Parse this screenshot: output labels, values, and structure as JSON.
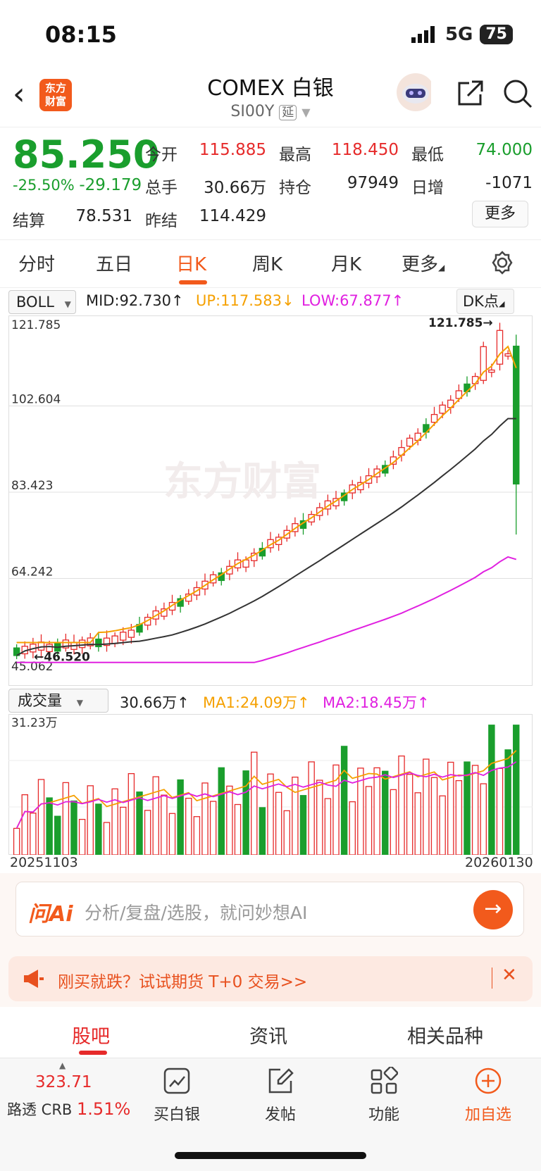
{
  "status": {
    "time": "08:15",
    "network": "5G",
    "battery": "75"
  },
  "header": {
    "title": "COMEX 白银",
    "code": "SI00Y",
    "delay_badge": "延",
    "logo_text": "东方财富"
  },
  "quote": {
    "price": "85.250",
    "change_pct": "-25.50%",
    "change": "-29.179",
    "fields": [
      {
        "label": "今开",
        "value": "115.885",
        "color": "#e62a2a"
      },
      {
        "label": "最高",
        "value": "118.450",
        "color": "#e62a2a"
      },
      {
        "label": "最低",
        "value": "74.000",
        "color": "#1a9e2d"
      },
      {
        "label": "总手",
        "value": "30.66万",
        "color": "#222222"
      },
      {
        "label": "持仓",
        "value": "97949",
        "color": "#222222"
      },
      {
        "label": "日增",
        "value": "-1071",
        "color": "#222222"
      },
      {
        "label": "结算",
        "value": "78.531",
        "color": "#222222"
      },
      {
        "label": "昨结",
        "value": "114.429",
        "color": "#222222"
      }
    ],
    "more_label": "更多"
  },
  "tabs": [
    "分时",
    "五日",
    "日K",
    "周K",
    "月K",
    "更多"
  ],
  "active_tab": "日K",
  "indicator": {
    "name": "BOLL",
    "mid": "MID:92.730",
    "up": "UP:117.583",
    "low": "LOW:67.877",
    "dk": "DK点"
  },
  "price_axis": {
    "labels": [
      "121.785",
      "102.604",
      "83.423",
      "64.242",
      "45.062"
    ],
    "max_marker": "121.785",
    "min_marker": "46.520",
    "watermark": "东方财富"
  },
  "volume": {
    "selector": "成交量",
    "total": "30.66万",
    "ma1": "MA1:24.09万",
    "ma2": "MA2:18.45万",
    "max_label": "31.23万",
    "date_start": "20251103",
    "date_end": "20260130"
  },
  "colors": {
    "up": "#e62a2a",
    "down": "#1a9e2d",
    "mid": "#333333",
    "upper": "#f5a000",
    "lower": "#e020e0",
    "accent": "#f25a1c"
  },
  "ai": {
    "logo": "问Ai",
    "placeholder": "分析/复盘/选股，就问妙想AI"
  },
  "promo": {
    "text": "刚买就跌？试试期货 T+0 交易>>"
  },
  "bottom_tabs": [
    "股吧",
    "资讯",
    "相关品种"
  ],
  "bottom_bar": {
    "crb_value": "323.71",
    "crb_label": "路透 CRB",
    "crb_pct": "1.51%",
    "items": [
      {
        "label": "买白银",
        "icon": "chart-icon"
      },
      {
        "label": "发帖",
        "icon": "edit-icon"
      },
      {
        "label": "功能",
        "icon": "grid-icon"
      },
      {
        "label": "加自选",
        "icon": "plus-circle-icon"
      }
    ]
  }
}
